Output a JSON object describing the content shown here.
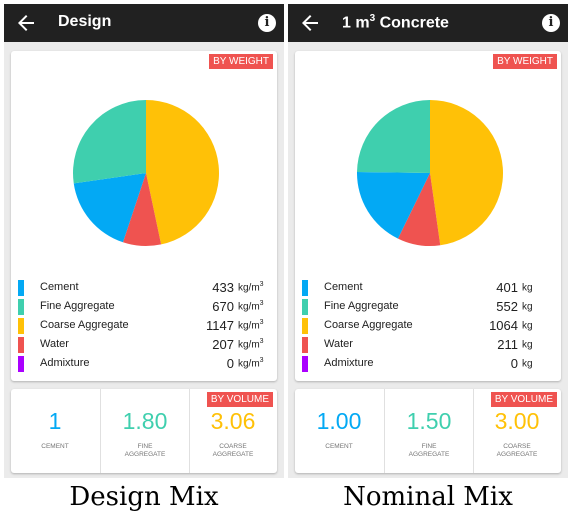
{
  "colors": {
    "cement": "#03a9f4",
    "fine_aggregate": "#3fcfae",
    "coarse_aggregate": "#ffc107",
    "water": "#ef5350",
    "admixture": "#aa00ff",
    "appbar": "#212121",
    "tag": "#ef5350"
  },
  "icons": {
    "back": "arrow-left-icon",
    "info": "info-icon"
  },
  "panels": [
    {
      "title": "Design",
      "title_sup": "",
      "weight_tag": "BY WEIGHT",
      "volume_tag": "BY VOLUME",
      "materials": [
        {
          "name": "Cement",
          "value": "433",
          "unit": "kg/m",
          "unit_sup": "3"
        },
        {
          "name": "Fine Aggregate",
          "value": "670",
          "unit": "kg/m",
          "unit_sup": "3"
        },
        {
          "name": "Coarse Aggregate",
          "value": "1147",
          "unit": "kg/m",
          "unit_sup": "3"
        },
        {
          "name": "Water",
          "value": "207",
          "unit": "kg/m",
          "unit_sup": "3"
        },
        {
          "name": "Admixture",
          "value": "0",
          "unit": "kg/m",
          "unit_sup": "3"
        }
      ],
      "volume": [
        {
          "value": "1",
          "label": "CEMENT"
        },
        {
          "value": "1.80",
          "label": "FINE AGGREGATE"
        },
        {
          "value": "3.06",
          "label": "COARSE AGGREGATE"
        }
      ],
      "caption": "Design  Mix"
    },
    {
      "title": "1 m",
      "title_sup": "3",
      "title_suffix": " Concrete",
      "weight_tag": "BY WEIGHT",
      "volume_tag": "BY VOLUME",
      "materials": [
        {
          "name": "Cement",
          "value": "401",
          "unit": "kg",
          "unit_sup": ""
        },
        {
          "name": "Fine Aggregate",
          "value": "552",
          "unit": "kg",
          "unit_sup": ""
        },
        {
          "name": "Coarse Aggregate",
          "value": "1064",
          "unit": "kg",
          "unit_sup": ""
        },
        {
          "name": "Water",
          "value": "211",
          "unit": "kg",
          "unit_sup": ""
        },
        {
          "name": "Admixture",
          "value": "0",
          "unit": "kg",
          "unit_sup": ""
        }
      ],
      "volume": [
        {
          "value": "1.00",
          "label": "CEMENT"
        },
        {
          "value": "1.50",
          "label": "FINE AGGREGATE"
        },
        {
          "value": "3.00",
          "label": "COARSE AGGREGATE"
        }
      ],
      "caption": "Nominal  Mix"
    }
  ],
  "chart_data": [
    {
      "type": "pie",
      "categories": [
        "Coarse Aggregate",
        "Water",
        "Cement",
        "Fine Aggregate"
      ],
      "values": [
        1147,
        207,
        433,
        670
      ]
    },
    {
      "type": "pie",
      "categories": [
        "Coarse Aggregate",
        "Water",
        "Cement",
        "Fine Aggregate"
      ],
      "values": [
        1064,
        211,
        401,
        552
      ]
    }
  ]
}
